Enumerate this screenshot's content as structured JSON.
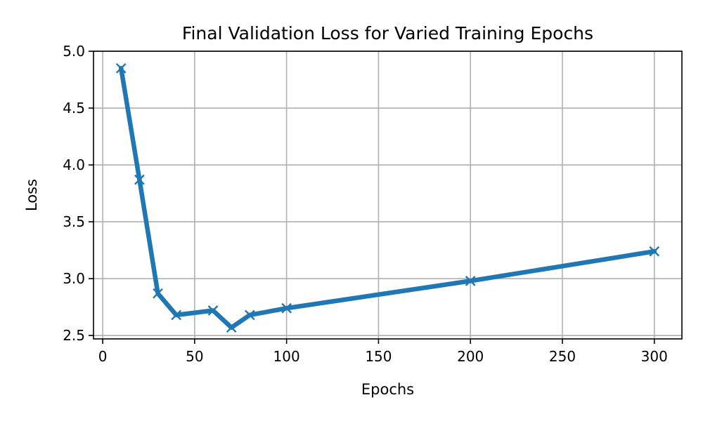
{
  "chart_data": {
    "type": "line",
    "title": "Final Validation Loss for Varied Training Epochs",
    "xlabel": "Epochs",
    "ylabel": "Loss",
    "xlim": [
      -5,
      315
    ],
    "ylim": [
      2.47,
      5.0
    ],
    "xticks": [
      0,
      50,
      100,
      150,
      200,
      250,
      300
    ],
    "xtick_labels": [
      "0",
      "50",
      "100",
      "150",
      "200",
      "250",
      "300"
    ],
    "yticks": [
      2.5,
      3.0,
      3.5,
      4.0,
      4.5,
      5.0
    ],
    "ytick_labels": [
      "2.5",
      "3.0",
      "3.5",
      "4.0",
      "4.5",
      "5.0"
    ],
    "grid": true,
    "series": [
      {
        "color": "#1f77b4",
        "marker": "x",
        "x": [
          10,
          20,
          30,
          40,
          60,
          70,
          80,
          100,
          200,
          300
        ],
        "y": [
          4.85,
          3.87,
          2.87,
          2.68,
          2.72,
          2.57,
          2.68,
          2.74,
          2.98,
          3.24
        ]
      }
    ]
  }
}
